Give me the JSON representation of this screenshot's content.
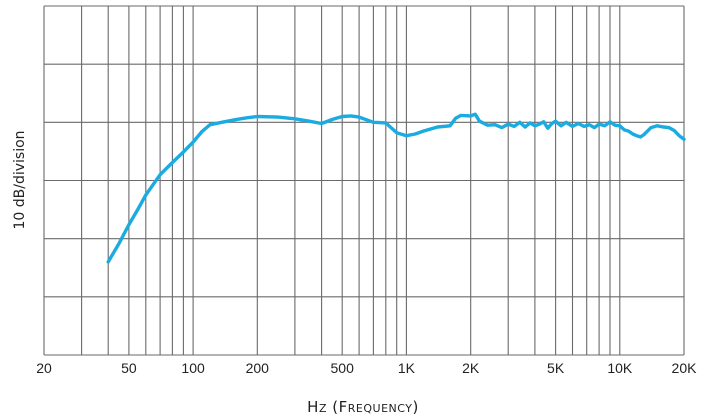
{
  "chart_data": {
    "type": "line",
    "title": "",
    "xlabel": {
      "main": "Hz",
      "paren": "Frequency"
    },
    "ylabel": "10 dB/division",
    "x_scale": "log",
    "xlim": [
      20,
      20000
    ],
    "ylim": [
      -60,
      0
    ],
    "y_divisions": 6,
    "grid": true,
    "x_tick_labels": [
      {
        "value": 20,
        "label": "20"
      },
      {
        "value": 50,
        "label": "50"
      },
      {
        "value": 100,
        "label": "100"
      },
      {
        "value": 200,
        "label": "200"
      },
      {
        "value": 500,
        "label": "500"
      },
      {
        "value": 1000,
        "label": "1K"
      },
      {
        "value": 2000,
        "label": "2K"
      },
      {
        "value": 5000,
        "label": "5K"
      },
      {
        "value": 10000,
        "label": "10K"
      },
      {
        "value": 20000,
        "label": "20K"
      }
    ],
    "x_gridlines": [
      20,
      30,
      40,
      50,
      60,
      70,
      80,
      90,
      100,
      200,
      300,
      400,
      500,
      600,
      700,
      800,
      900,
      1000,
      2000,
      3000,
      4000,
      5000,
      6000,
      7000,
      8000,
      9000,
      10000,
      20000
    ],
    "series": [
      {
        "color": "#1aabe0",
        "points": [
          [
            40,
            -44.0
          ],
          [
            45,
            -40.8
          ],
          [
            50,
            -37.6
          ],
          [
            55,
            -35.0
          ],
          [
            60,
            -32.5
          ],
          [
            70,
            -29.0
          ],
          [
            80,
            -26.9
          ],
          [
            90,
            -25.1
          ],
          [
            100,
            -23.4
          ],
          [
            110,
            -21.6
          ],
          [
            120,
            -20.4
          ],
          [
            140,
            -19.9
          ],
          [
            160,
            -19.5
          ],
          [
            180,
            -19.2
          ],
          [
            200,
            -19.0
          ],
          [
            250,
            -19.1
          ],
          [
            300,
            -19.4
          ],
          [
            350,
            -19.8
          ],
          [
            400,
            -20.2
          ],
          [
            450,
            -19.5
          ],
          [
            500,
            -19.0
          ],
          [
            550,
            -18.9
          ],
          [
            600,
            -19.1
          ],
          [
            700,
            -20.0
          ],
          [
            800,
            -20.1
          ],
          [
            900,
            -21.8
          ],
          [
            1000,
            -22.3
          ],
          [
            1100,
            -22.0
          ],
          [
            1200,
            -21.5
          ],
          [
            1400,
            -20.8
          ],
          [
            1600,
            -20.6
          ],
          [
            1700,
            -19.3
          ],
          [
            1800,
            -18.8
          ],
          [
            2000,
            -18.9
          ],
          [
            2100,
            -18.6
          ],
          [
            2200,
            -19.8
          ],
          [
            2400,
            -20.5
          ],
          [
            2600,
            -20.4
          ],
          [
            2800,
            -20.9
          ],
          [
            3000,
            -20.3
          ],
          [
            3200,
            -20.7
          ],
          [
            3400,
            -20.0
          ],
          [
            3600,
            -20.8
          ],
          [
            3800,
            -20.1
          ],
          [
            4000,
            -20.6
          ],
          [
            4200,
            -20.3
          ],
          [
            4400,
            -19.9
          ],
          [
            4600,
            -21.0
          ],
          [
            4800,
            -20.2
          ],
          [
            5000,
            -19.8
          ],
          [
            5300,
            -20.6
          ],
          [
            5600,
            -20.0
          ],
          [
            6000,
            -20.7
          ],
          [
            6400,
            -20.2
          ],
          [
            6800,
            -20.7
          ],
          [
            7200,
            -20.4
          ],
          [
            7600,
            -20.9
          ],
          [
            8000,
            -20.3
          ],
          [
            8500,
            -20.6
          ],
          [
            9000,
            -19.9
          ],
          [
            9500,
            -20.5
          ],
          [
            10000,
            -20.6
          ],
          [
            10500,
            -21.3
          ],
          [
            11000,
            -21.5
          ],
          [
            11500,
            -22.0
          ],
          [
            12000,
            -22.3
          ],
          [
            12500,
            -22.5
          ],
          [
            13000,
            -22.1
          ],
          [
            14000,
            -20.9
          ],
          [
            15000,
            -20.6
          ],
          [
            16000,
            -20.8
          ],
          [
            17000,
            -20.9
          ],
          [
            18000,
            -21.4
          ],
          [
            19000,
            -22.3
          ],
          [
            20000,
            -22.9
          ]
        ]
      }
    ]
  }
}
